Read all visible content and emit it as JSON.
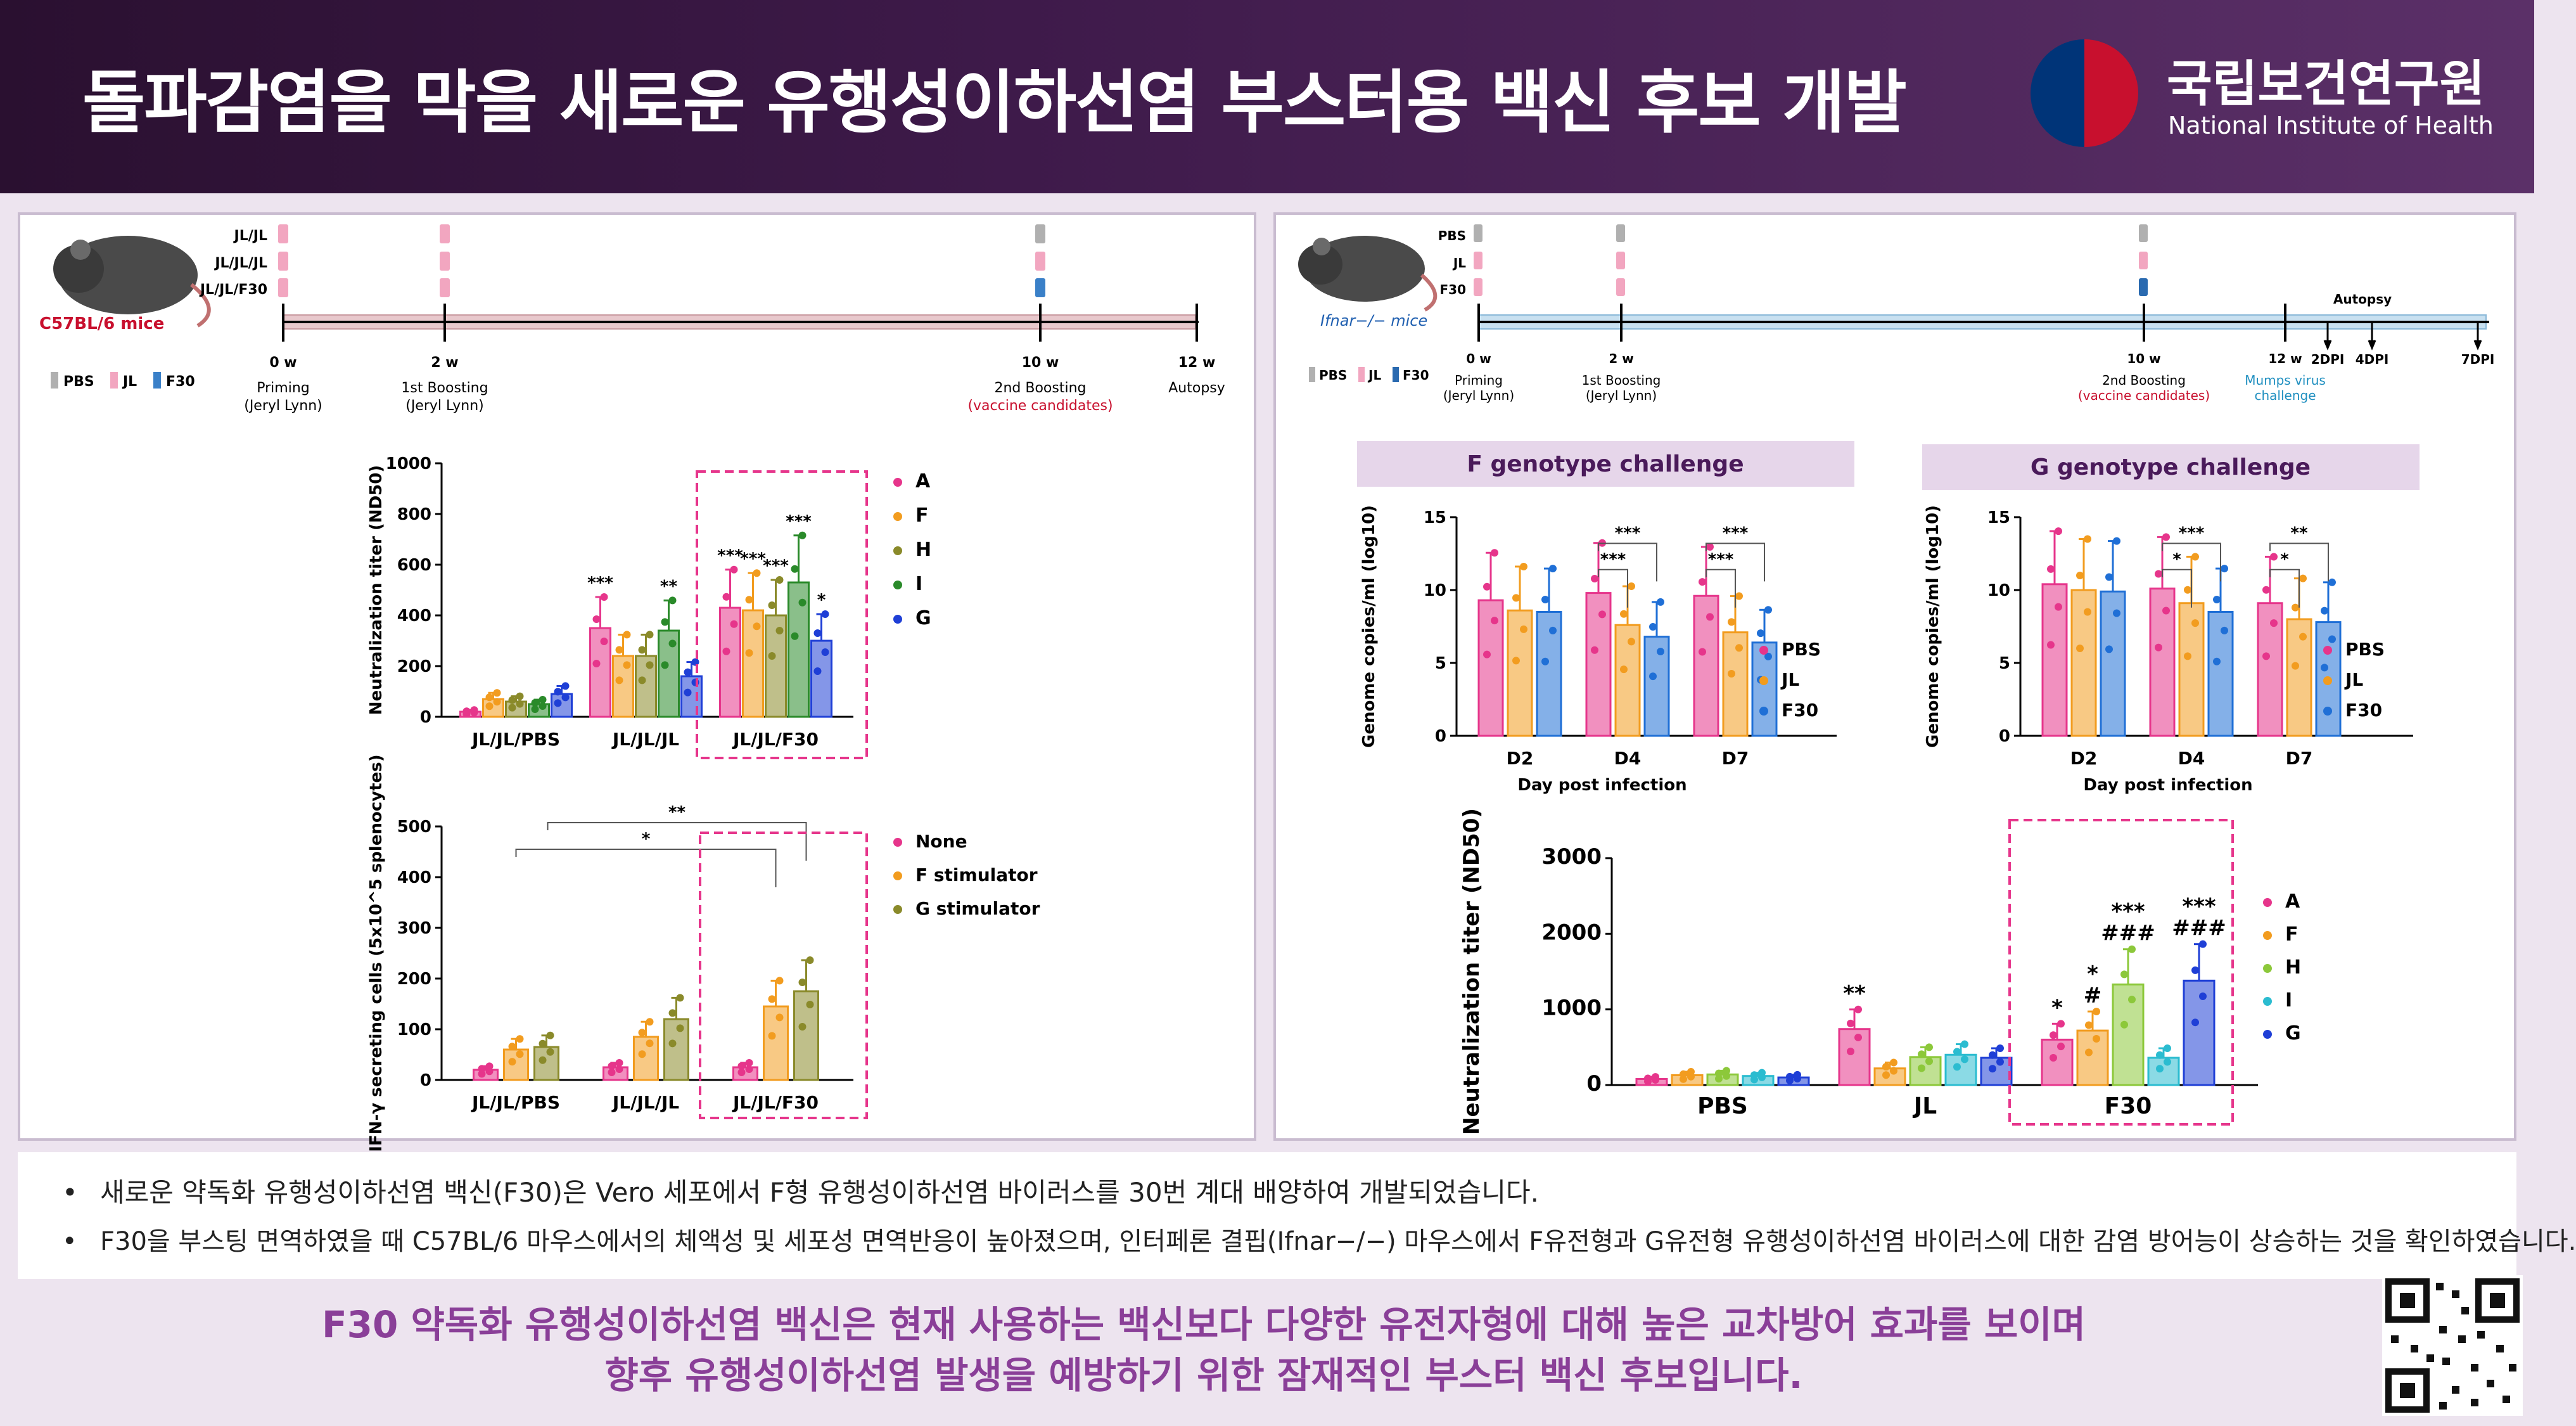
{
  "header": {
    "title": "돌파감염을 막을 새로운 유행성이하선염 부스터용 백신 후보 개발",
    "logo_ko": "국립보건연구원",
    "logo_en": "National Institute of Health"
  },
  "left_panel": {
    "mouse_label": "C57BL/6 mice",
    "groups": [
      "JL/JL",
      "JL/JL/JL",
      "JL/JL/F30"
    ],
    "legend": [
      "PBS",
      "JL",
      "F30"
    ],
    "timeline": [
      {
        "t": "0 w",
        "l1": "Priming",
        "l2": "(Jeryl Lynn)"
      },
      {
        "t": "2 w",
        "l1": "1st Boosting",
        "l2": "(Jeryl Lynn)"
      },
      {
        "t": "10 w",
        "l1": "2nd Boosting",
        "l2": "(vaccine candidates)"
      },
      {
        "t": "12 w",
        "l1": "Autopsy",
        "l2": ""
      }
    ]
  },
  "right_panel": {
    "mouse_label": "Ifnar−/− mice",
    "groups": [
      "PBS",
      "JL",
      "F30"
    ],
    "legend": [
      "PBS",
      "JL",
      "F30"
    ],
    "timeline": [
      {
        "t": "0 w",
        "l1": "Priming",
        "l2": "(Jeryl Lynn)"
      },
      {
        "t": "2 w",
        "l1": "1st Boosting",
        "l2": "(Jeryl Lynn)"
      },
      {
        "t": "10 w",
        "l1": "2nd Boosting",
        "l2": "(vaccine candidates)"
      },
      {
        "t": "12 w",
        "l1": "Mumps virus",
        "l2": "challenge"
      }
    ],
    "autopsy": "Autopsy",
    "dpi": [
      "2DPI",
      "4DPI",
      "7DPI"
    ],
    "f_title": "F genotype challenge",
    "g_title": "G genotype challenge"
  },
  "chart_data": [
    {
      "type": "bar",
      "ylabel": "Neutralization titer (ND50)",
      "ylim": [
        0,
        1000
      ],
      "yticks": [
        0,
        200,
        400,
        600,
        800,
        1000
      ],
      "categories": [
        "JL/JL/PBS",
        "JL/JL/JL",
        "JL/JL/F30"
      ],
      "series": [
        {
          "name": "A",
          "color": "#e6358b",
          "values": [
            20,
            350,
            430
          ]
        },
        {
          "name": "F",
          "color": "#f29c1f",
          "values": [
            70,
            240,
            420
          ]
        },
        {
          "name": "H",
          "color": "#8a8a2a",
          "values": [
            60,
            240,
            400
          ]
        },
        {
          "name": "I",
          "color": "#2a8a2a",
          "values": [
            50,
            340,
            530
          ]
        },
        {
          "name": "G",
          "color": "#1f3fd6",
          "values": [
            90,
            160,
            300
          ]
        }
      ],
      "annotations": [
        {
          "category": "JL/JL/JL",
          "series": "A",
          "text": "***"
        },
        {
          "category": "JL/JL/JL",
          "series": "I",
          "text": "**"
        },
        {
          "category": "JL/JL/F30",
          "series": "A",
          "text": "***"
        },
        {
          "category": "JL/JL/F30",
          "series": "F",
          "text": "***"
        },
        {
          "category": "JL/JL/F30",
          "series": "H",
          "text": "***"
        },
        {
          "category": "JL/JL/F30",
          "series": "I",
          "text": "***"
        },
        {
          "category": "JL/JL/F30",
          "series": "G",
          "text": "*"
        }
      ],
      "highlight": "JL/JL/F30"
    },
    {
      "type": "bar",
      "ylabel": "IFN-γ secreting cells (5x10^5 splenocytes)",
      "ylim": [
        0,
        500
      ],
      "yticks": [
        0,
        100,
        200,
        300,
        400,
        500
      ],
      "categories": [
        "JL/JL/PBS",
        "JL/JL/JL",
        "JL/JL/F30"
      ],
      "series": [
        {
          "name": "None",
          "color": "#e6358b",
          "values": [
            20,
            25,
            25
          ]
        },
        {
          "name": "F stimulator",
          "color": "#f29c1f",
          "values": [
            60,
            85,
            145
          ]
        },
        {
          "name": "G stimulator",
          "color": "#8a8a2a",
          "values": [
            65,
            120,
            175
          ]
        }
      ],
      "brackets": [
        {
          "text": "*"
        },
        {
          "text": "**"
        }
      ],
      "highlight": "JL/JL/F30"
    },
    {
      "type": "bar",
      "title": "F genotype challenge",
      "ylabel": "Genome copies/ml (log10)",
      "xlabel": "Day post infection",
      "ylim": [
        0,
        15
      ],
      "yticks": [
        0,
        5,
        10,
        15
      ],
      "categories": [
        "D2",
        "D4",
        "D7"
      ],
      "series": [
        {
          "name": "PBS",
          "color": "#e6358b",
          "values": [
            9.3,
            9.8,
            9.6
          ]
        },
        {
          "name": "JL",
          "color": "#f29c1f",
          "values": [
            8.6,
            7.6,
            7.1
          ]
        },
        {
          "name": "F30",
          "color": "#1f6fd6",
          "values": [
            8.5,
            6.8,
            6.4
          ]
        }
      ],
      "brackets": [
        {
          "text": "***"
        },
        {
          "text": "***"
        },
        {
          "text": "***"
        },
        {
          "text": "***"
        }
      ]
    },
    {
      "type": "bar",
      "title": "G genotype challenge",
      "ylabel": "Genome copies/ml (log10)",
      "xlabel": "Day post infection",
      "ylim": [
        0,
        15
      ],
      "yticks": [
        0,
        5,
        10,
        15
      ],
      "categories": [
        "D2",
        "D4",
        "D7"
      ],
      "series": [
        {
          "name": "PBS",
          "color": "#e6358b",
          "values": [
            10.4,
            10.1,
            9.1
          ]
        },
        {
          "name": "JL",
          "color": "#f29c1f",
          "values": [
            10.0,
            9.1,
            8.0
          ]
        },
        {
          "name": "F30",
          "color": "#1f6fd6",
          "values": [
            9.9,
            8.5,
            7.8
          ]
        }
      ],
      "brackets": [
        {
          "text": "*"
        },
        {
          "text": "***"
        },
        {
          "text": "*"
        },
        {
          "text": "**"
        }
      ]
    },
    {
      "type": "bar",
      "ylabel": "Neutralization titer (ND50)",
      "ylim": [
        0,
        3000
      ],
      "yticks": [
        0,
        1000,
        2000,
        3000
      ],
      "categories": [
        "PBS",
        "JL",
        "F30"
      ],
      "series": [
        {
          "name": "A",
          "color": "#e6358b",
          "values": [
            80,
            740,
            600
          ]
        },
        {
          "name": "F",
          "color": "#f29c1f",
          "values": [
            130,
            220,
            720
          ]
        },
        {
          "name": "H",
          "color": "#8cc83a",
          "values": [
            140,
            370,
            1330
          ]
        },
        {
          "name": "I",
          "color": "#2bbcd0",
          "values": [
            120,
            400,
            360
          ]
        },
        {
          "name": "G",
          "color": "#1f3fd6",
          "values": [
            100,
            360,
            1380
          ]
        }
      ],
      "annotations": [
        {
          "category": "JL",
          "series": "A",
          "text": "**"
        },
        {
          "category": "F30",
          "series": "A",
          "text": "*"
        },
        {
          "category": "F30",
          "series": "F",
          "text": "#"
        },
        {
          "category": "F30",
          "series": "F",
          "text": "*"
        },
        {
          "category": "F30",
          "series": "H",
          "text": "###"
        },
        {
          "category": "F30",
          "series": "H",
          "text": "***"
        },
        {
          "category": "F30",
          "series": "G",
          "text": "###"
        },
        {
          "category": "F30",
          "series": "G",
          "text": "***"
        }
      ],
      "highlight": "F30"
    }
  ],
  "notes": [
    "새로운 약독화 유행성이하선염 백신(F30)은 Vero 세포에서 F형 유행성이하선염 바이러스를 30번 계대 배양하여 개발되었습니다.",
    "F30을 부스팅 면역하였을 때 C57BL/6 마우스에서의 체액성 및 세포성 면역반응이 높아졌으며, 인터페론 결핍(Ifnar−/−) 마우스에서 F유전형과 G유전형 유행성이하선염 바이러스에 대한 감염 방어능이 상승하는 것을 확인하였습니다."
  ],
  "conclusion": [
    "F30 약독화 유행성이하선염 백신은 현재 사용하는 백신보다 다양한 유전자형에 대해 높은 교차방어 효과를 보이며",
    "향후 유행성이하선염 발생을 예방하기 위한 잠재적인 부스터 백신 후보입니다."
  ],
  "icons": [
    "mouse-icon",
    "syringe-icon",
    "qr-code-icon",
    "nih-logo-icon"
  ]
}
